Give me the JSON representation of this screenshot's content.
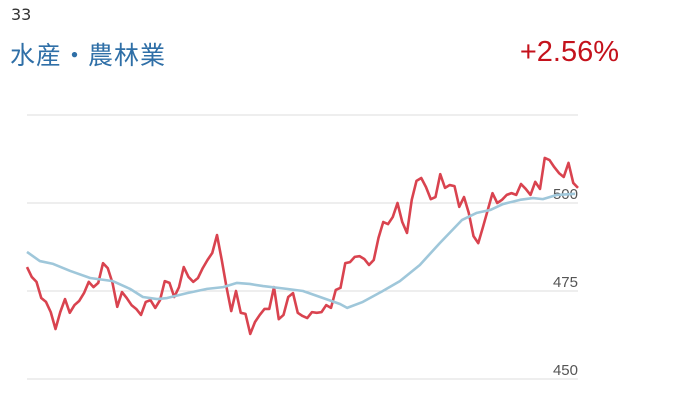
{
  "header": {
    "code": "33",
    "title": "水産・農林業",
    "change": "+2.56%"
  },
  "colors": {
    "title": "#2f6fa7",
    "change": "#c4121c",
    "price_line": "#d9434f",
    "average_line": "#9fc7da",
    "grid": "#dddddd"
  },
  "chart_data": {
    "type": "line",
    "ylim": [
      450,
      525
    ],
    "grid": true,
    "yticks": [
      450,
      475,
      500,
      525
    ],
    "ytick_labels": [
      "450",
      "475",
      "500",
      ""
    ],
    "series": [
      {
        "values": [
          481.8,
          479.0,
          477.6,
          473.0,
          471.9,
          469.0,
          464.2,
          469.0,
          472.7,
          468.8,
          471.0,
          472.2,
          474.4,
          477.6,
          476.1,
          477.3,
          482.9,
          481.5,
          477.3,
          470.5,
          474.7,
          473.0,
          471.0,
          469.9,
          468.2,
          471.9,
          472.4,
          470.2,
          472.4,
          477.8,
          477.3,
          473.3,
          476.1,
          481.8,
          479.0,
          477.6,
          478.7,
          481.5,
          483.8,
          485.8,
          490.9,
          483.8,
          476.1,
          469.3,
          475.0,
          468.8,
          468.5,
          462.8,
          466.2,
          468.2,
          469.9,
          469.9,
          476.1,
          467.0,
          468.2,
          473.3,
          474.4,
          468.8,
          467.9,
          467.3,
          469.0,
          468.8,
          469.0,
          471.0,
          470.2,
          475.3,
          475.9,
          482.9,
          483.2,
          484.7,
          484.9,
          484.1,
          482.4,
          483.8,
          490.1,
          494.6,
          494.0,
          496.0,
          500.0,
          494.6,
          491.5,
          500.9,
          506.3,
          507.1,
          504.5,
          501.1,
          501.7,
          508.2,
          504.3,
          505.1,
          504.8,
          498.9,
          501.7,
          497.2,
          490.6,
          488.6,
          493.2,
          498.0,
          502.8,
          500.0,
          500.9,
          502.3,
          502.8,
          502.3,
          505.4,
          504.0,
          502.3,
          506.0,
          504.0,
          512.8,
          512.2,
          510.2,
          508.5,
          507.4,
          511.4,
          505.7,
          504.3
        ]
      },
      {
        "points": [
          [
            0,
            486.1
          ],
          [
            2.7,
            483.5
          ],
          [
            5.5,
            482.7
          ],
          [
            9.1,
            480.7
          ],
          [
            13.3,
            478.7
          ],
          [
            18.1,
            477.8
          ],
          [
            21.7,
            475.6
          ],
          [
            24.4,
            473.3
          ],
          [
            27.4,
            472.7
          ],
          [
            29.5,
            473.0
          ],
          [
            33.7,
            474.4
          ],
          [
            37.9,
            475.6
          ],
          [
            41.3,
            476.1
          ],
          [
            44.2,
            477.3
          ],
          [
            46.9,
            477.0
          ],
          [
            49.7,
            476.4
          ],
          [
            54.7,
            475.6
          ],
          [
            58.1,
            475.0
          ],
          [
            61.7,
            473.3
          ],
          [
            65.9,
            471.3
          ],
          [
            67.4,
            470.2
          ],
          [
            70.7,
            471.9
          ],
          [
            74.9,
            475.0
          ],
          [
            78.5,
            477.8
          ],
          [
            82.7,
            482.4
          ],
          [
            86.9,
            488.6
          ],
          [
            91.6,
            495.2
          ],
          [
            94.7,
            497.2
          ],
          [
            97.5,
            498.0
          ],
          [
            100.2,
            499.7
          ],
          [
            103.8,
            500.9
          ],
          [
            106.5,
            501.4
          ],
          [
            108.6,
            501.1
          ],
          [
            111.6,
            502.3
          ],
          [
            115.4,
            502.6
          ]
        ]
      }
    ]
  }
}
